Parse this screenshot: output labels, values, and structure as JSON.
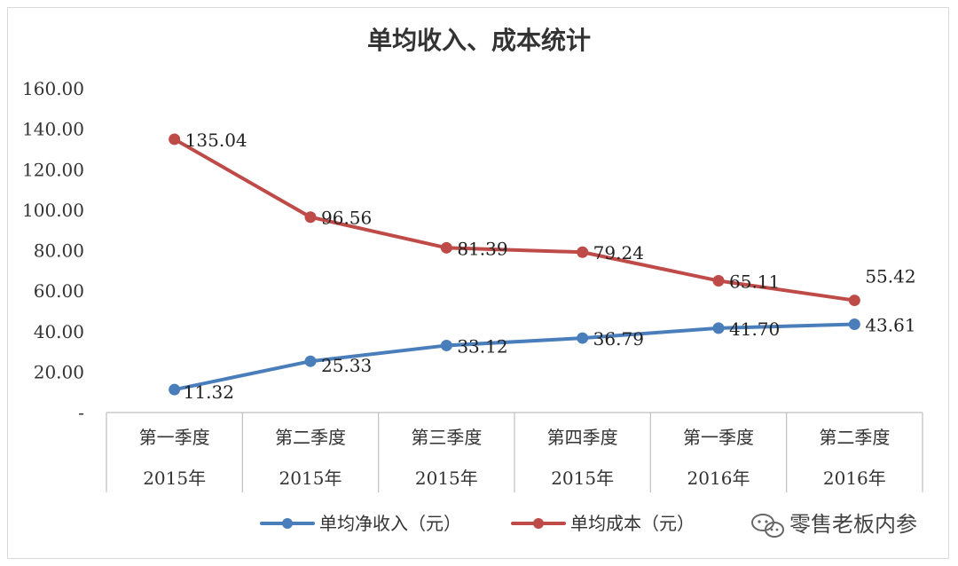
{
  "chart_data": {
    "type": "line",
    "title": "单均收入、成本统计",
    "categories": [
      [
        "第一季度",
        "2015年"
      ],
      [
        "第二季度",
        "2015年"
      ],
      [
        "第三季度",
        "2015年"
      ],
      [
        "第四季度",
        "2015年"
      ],
      [
        "第一季度",
        "2016年"
      ],
      [
        "第二季度",
        "2016年"
      ]
    ],
    "series": [
      {
        "name": "单均净收入（元）",
        "color": "#4a7ebb",
        "values": [
          11.32,
          25.33,
          33.12,
          36.79,
          41.7,
          43.61
        ],
        "labels": [
          "11.32",
          "25.33",
          "33.12",
          "36.79",
          "41.70",
          "43.61"
        ]
      },
      {
        "name": "单均成本（元）",
        "color": "#be4b48",
        "values": [
          135.04,
          96.56,
          81.39,
          79.24,
          65.11,
          55.42
        ],
        "labels": [
          "135.04",
          "96.56",
          "81.39",
          "79.24",
          "65.11",
          "55.42"
        ]
      }
    ],
    "yticks": [
      "-",
      "20.00",
      "40.00",
      "60.00",
      "80.00",
      "100.00",
      "120.00",
      "140.00",
      "160.00"
    ],
    "ylim": [
      0,
      160
    ],
    "grid": false,
    "legend_position": "bottom"
  },
  "watermark": {
    "text": "零售老板内参",
    "icon": "wechat-icon"
  }
}
